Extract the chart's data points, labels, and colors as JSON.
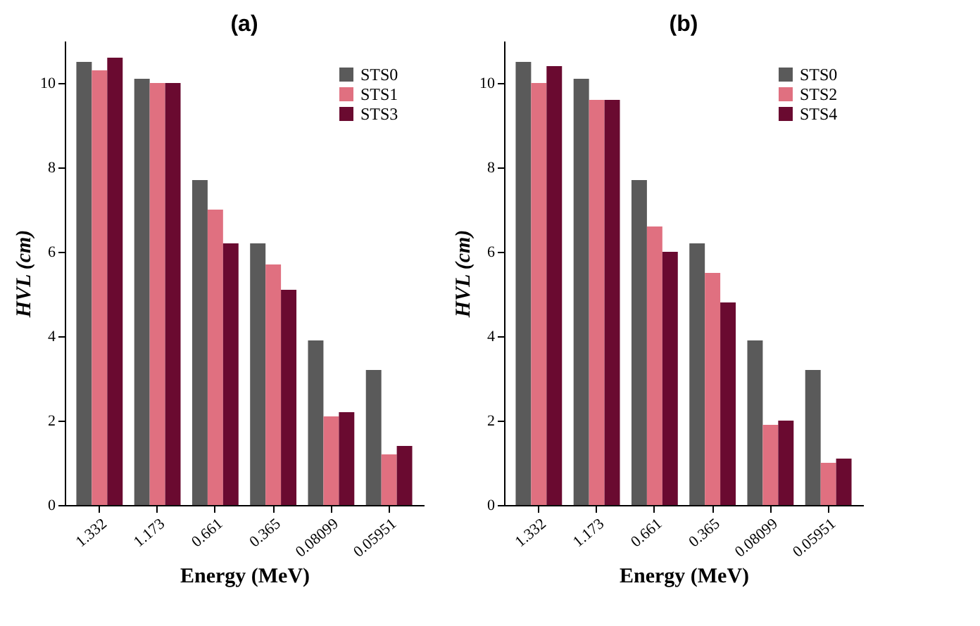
{
  "chart_data": [
    {
      "type": "bar",
      "title": "(a)",
      "xlabel": "Energy (MeV)",
      "ylabel": "HVL (cm)",
      "categories": [
        "1.332",
        "1.173",
        "0.661",
        "0.365",
        "0.08099",
        "0.05951"
      ],
      "ylim": [
        0,
        11
      ],
      "yticks": [
        0,
        2,
        4,
        6,
        8,
        10
      ],
      "legend": "top right",
      "series": [
        {
          "name": "STS0",
          "color": "#5a5a5a",
          "values": [
            10.5,
            10.1,
            7.7,
            6.2,
            3.9,
            3.2
          ]
        },
        {
          "name": "STS1",
          "color": "#e07080",
          "values": [
            10.3,
            10.0,
            7.0,
            5.7,
            2.1,
            1.2
          ]
        },
        {
          "name": "STS3",
          "color": "#6a0a30",
          "values": [
            10.6,
            10.0,
            6.2,
            5.1,
            2.2,
            1.4
          ]
        }
      ]
    },
    {
      "type": "bar",
      "title": "(b)",
      "xlabel": "Energy (MeV)",
      "ylabel": "HVL (cm)",
      "categories": [
        "1.332",
        "1.173",
        "0.661",
        "0.365",
        "0.08099",
        "0.05951"
      ],
      "ylim": [
        0,
        11
      ],
      "yticks": [
        0,
        2,
        4,
        6,
        8,
        10
      ],
      "legend": "top right",
      "series": [
        {
          "name": "STS0",
          "color": "#5a5a5a",
          "values": [
            10.5,
            10.1,
            7.7,
            6.2,
            3.9,
            3.2
          ]
        },
        {
          "name": "STS2",
          "color": "#e07080",
          "values": [
            10.0,
            9.6,
            6.6,
            5.5,
            1.9,
            1.0
          ]
        },
        {
          "name": "STS4",
          "color": "#6a0a30",
          "values": [
            10.4,
            9.6,
            6.0,
            4.8,
            2.0,
            1.1
          ]
        }
      ]
    }
  ]
}
